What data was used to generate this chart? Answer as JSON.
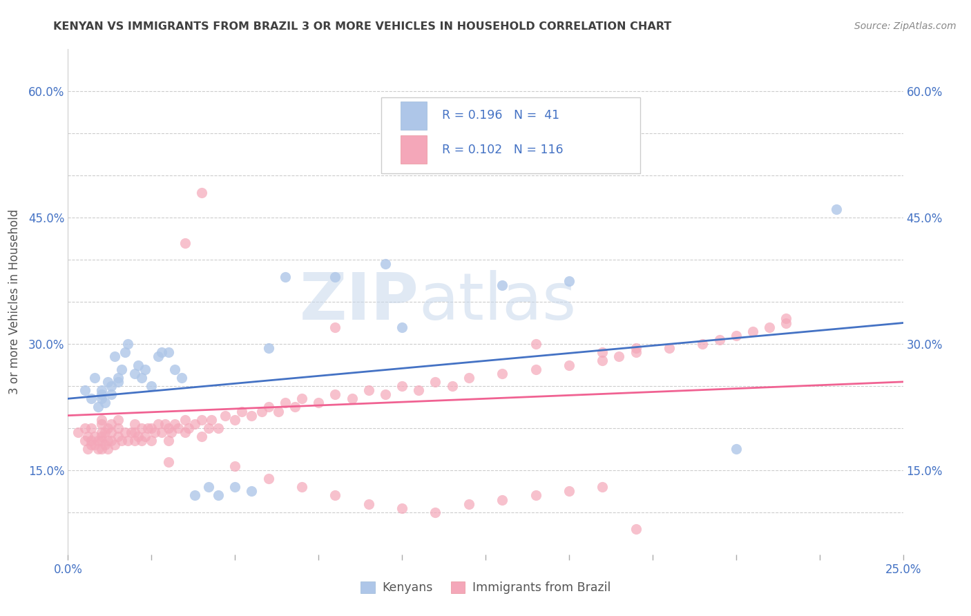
{
  "title": "KENYAN VS IMMIGRANTS FROM BRAZIL 3 OR MORE VEHICLES IN HOUSEHOLD CORRELATION CHART",
  "source_text": "Source: ZipAtlas.com",
  "xlabel_kenyans": "Kenyans",
  "xlabel_brazil": "Immigrants from Brazil",
  "ylabel": "3 or more Vehicles in Household",
  "xmin": 0.0,
  "xmax": 0.25,
  "ymin": 0.05,
  "ymax": 0.65,
  "color_kenyan": "#aec6e8",
  "color_brazil": "#f4a7b9",
  "color_line_kenyan": "#4472c4",
  "color_line_brazil": "#f06292",
  "color_title": "#404040",
  "color_source": "#808080",
  "color_legend_text": "#4472c4",
  "color_axis_label": "#4472c4",
  "watermark_zip": "ZIP",
  "watermark_atlas": "atlas",
  "kenyan_x": [
    0.005,
    0.007,
    0.008,
    0.009,
    0.01,
    0.01,
    0.01,
    0.011,
    0.012,
    0.013,
    0.013,
    0.014,
    0.015,
    0.015,
    0.016,
    0.017,
    0.018,
    0.02,
    0.021,
    0.022,
    0.023,
    0.025,
    0.027,
    0.028,
    0.03,
    0.032,
    0.034,
    0.038,
    0.042,
    0.045,
    0.05,
    0.055,
    0.06,
    0.065,
    0.08,
    0.095,
    0.1,
    0.13,
    0.15,
    0.2,
    0.23
  ],
  "kenyan_y": [
    0.245,
    0.235,
    0.26,
    0.225,
    0.235,
    0.24,
    0.245,
    0.23,
    0.255,
    0.24,
    0.25,
    0.285,
    0.255,
    0.26,
    0.27,
    0.29,
    0.3,
    0.265,
    0.275,
    0.26,
    0.27,
    0.25,
    0.285,
    0.29,
    0.29,
    0.27,
    0.26,
    0.12,
    0.13,
    0.12,
    0.13,
    0.125,
    0.295,
    0.38,
    0.38,
    0.395,
    0.32,
    0.37,
    0.375,
    0.175,
    0.46
  ],
  "brazil_x": [
    0.003,
    0.005,
    0.005,
    0.006,
    0.006,
    0.007,
    0.007,
    0.007,
    0.008,
    0.008,
    0.009,
    0.009,
    0.01,
    0.01,
    0.01,
    0.01,
    0.01,
    0.01,
    0.011,
    0.011,
    0.012,
    0.012,
    0.012,
    0.013,
    0.013,
    0.013,
    0.014,
    0.015,
    0.015,
    0.015,
    0.016,
    0.017,
    0.018,
    0.019,
    0.02,
    0.02,
    0.02,
    0.021,
    0.022,
    0.022,
    0.023,
    0.024,
    0.025,
    0.025,
    0.026,
    0.027,
    0.028,
    0.029,
    0.03,
    0.03,
    0.031,
    0.032,
    0.033,
    0.035,
    0.035,
    0.036,
    0.038,
    0.04,
    0.04,
    0.042,
    0.043,
    0.045,
    0.047,
    0.05,
    0.052,
    0.055,
    0.058,
    0.06,
    0.063,
    0.065,
    0.068,
    0.07,
    0.075,
    0.08,
    0.085,
    0.09,
    0.095,
    0.1,
    0.105,
    0.11,
    0.115,
    0.12,
    0.13,
    0.14,
    0.15,
    0.16,
    0.165,
    0.17,
    0.18,
    0.19,
    0.195,
    0.2,
    0.205,
    0.21,
    0.215,
    0.215,
    0.16,
    0.17,
    0.14,
    0.08,
    0.04,
    0.035,
    0.03,
    0.05,
    0.06,
    0.07,
    0.08,
    0.09,
    0.1,
    0.11,
    0.12,
    0.13,
    0.14,
    0.15,
    0.16,
    0.17
  ],
  "brazil_y": [
    0.195,
    0.185,
    0.2,
    0.175,
    0.19,
    0.18,
    0.185,
    0.2,
    0.18,
    0.19,
    0.175,
    0.185,
    0.175,
    0.185,
    0.19,
    0.195,
    0.205,
    0.21,
    0.18,
    0.195,
    0.175,
    0.185,
    0.2,
    0.185,
    0.195,
    0.205,
    0.18,
    0.19,
    0.2,
    0.21,
    0.185,
    0.195,
    0.185,
    0.195,
    0.185,
    0.195,
    0.205,
    0.19,
    0.185,
    0.2,
    0.19,
    0.2,
    0.185,
    0.2,
    0.195,
    0.205,
    0.195,
    0.205,
    0.185,
    0.2,
    0.195,
    0.205,
    0.2,
    0.195,
    0.21,
    0.2,
    0.205,
    0.19,
    0.21,
    0.2,
    0.21,
    0.2,
    0.215,
    0.21,
    0.22,
    0.215,
    0.22,
    0.225,
    0.22,
    0.23,
    0.225,
    0.235,
    0.23,
    0.24,
    0.235,
    0.245,
    0.24,
    0.25,
    0.245,
    0.255,
    0.25,
    0.26,
    0.265,
    0.27,
    0.275,
    0.28,
    0.285,
    0.29,
    0.295,
    0.3,
    0.305,
    0.31,
    0.315,
    0.32,
    0.325,
    0.33,
    0.29,
    0.295,
    0.3,
    0.32,
    0.48,
    0.42,
    0.16,
    0.155,
    0.14,
    0.13,
    0.12,
    0.11,
    0.105,
    0.1,
    0.11,
    0.115,
    0.12,
    0.125,
    0.13,
    0.08
  ]
}
